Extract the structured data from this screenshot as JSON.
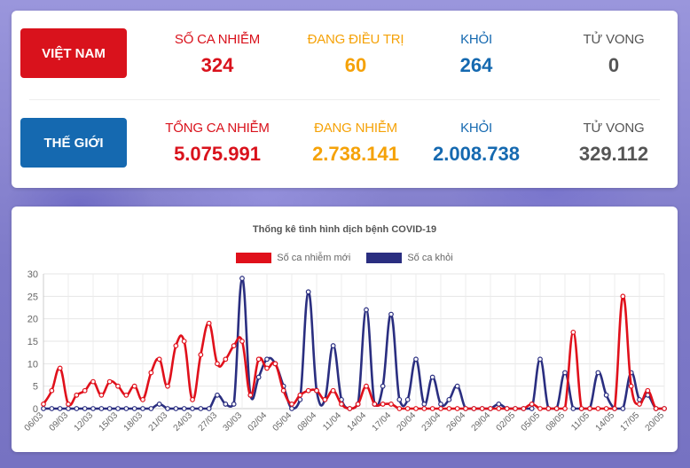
{
  "vietnam": {
    "region_label": "VIỆT NAM",
    "stats": [
      {
        "label": "SỐ CA NHIỄM",
        "value": "324"
      },
      {
        "label": "ĐANG ĐIỀU TRỊ",
        "value": "60"
      },
      {
        "label": "KHỎI",
        "value": "264"
      },
      {
        "label": "TỬ VONG",
        "value": "0"
      }
    ]
  },
  "world": {
    "region_label": "THẾ GIỚI",
    "stats": [
      {
        "label": "TỔNG CA NHIỄM",
        "value": "5.075.991"
      },
      {
        "label": "ĐANG NHIỄM",
        "value": "2.738.141"
      },
      {
        "label": "KHỎI",
        "value": "2.008.738"
      },
      {
        "label": "TỬ VONG",
        "value": "329.112"
      }
    ]
  },
  "colors": {
    "red": "#d9121c",
    "orange": "#f5a208",
    "blue": "#1569b0",
    "gray": "#555555",
    "series_new": "#e0101b",
    "series_recovered": "#2a2e80"
  },
  "chart_data": {
    "type": "line",
    "title": "Thống kê tình hình dịch bệnh COVID-19",
    "legend_position": "top",
    "grid": true,
    "ylim": [
      0,
      30
    ],
    "yticks": [
      0,
      5,
      10,
      15,
      20,
      25,
      30
    ],
    "x": [
      "06/03",
      "07/03",
      "08/03",
      "09/03",
      "10/03",
      "11/03",
      "12/03",
      "13/03",
      "14/03",
      "15/03",
      "16/03",
      "17/03",
      "18/03",
      "19/03",
      "20/03",
      "21/03",
      "22/03",
      "23/03",
      "24/03",
      "25/03",
      "26/03",
      "27/03",
      "28/03",
      "29/03",
      "30/03",
      "31/03",
      "01/04",
      "02/04",
      "03/04",
      "04/04",
      "05/04",
      "06/04",
      "07/04",
      "08/04",
      "09/04",
      "10/04",
      "11/04",
      "12/04",
      "13/04",
      "14/04",
      "15/04",
      "16/04",
      "17/04",
      "18/04",
      "19/04",
      "20/04",
      "21/04",
      "22/04",
      "23/04",
      "24/04",
      "25/04",
      "26/04",
      "27/04",
      "28/04",
      "29/04",
      "30/04",
      "01/05",
      "02/05",
      "03/05",
      "04/05",
      "05/05",
      "06/05",
      "07/05",
      "08/05",
      "09/05",
      "10/05",
      "11/05",
      "12/05",
      "13/05",
      "14/05",
      "15/05",
      "16/05",
      "17/05",
      "18/05",
      "19/05",
      "20/05"
    ],
    "x_tick_labels": [
      "06/03",
      "09/03",
      "12/03",
      "15/03",
      "18/03",
      "21/03",
      "24/03",
      "27/03",
      "30/03",
      "02/04",
      "05/04",
      "08/04",
      "11/04",
      "14/04",
      "17/04",
      "20/04",
      "23/04",
      "26/04",
      "29/04",
      "02/05",
      "05/05",
      "08/05",
      "11/05",
      "14/05",
      "17/05",
      "20/05"
    ],
    "series": [
      {
        "name": "Số ca nhiễm mới",
        "color": "#e0101b",
        "values": [
          1,
          4,
          9,
          1,
          3,
          4,
          6,
          3,
          6,
          5,
          3,
          5,
          2,
          8,
          11,
          5,
          14,
          15,
          2,
          12,
          19,
          10,
          11,
          14,
          15,
          3,
          11,
          9,
          10,
          4,
          1,
          3,
          4,
          4,
          2,
          4,
          1,
          0,
          1,
          5,
          1,
          1,
          1,
          0,
          0,
          0,
          0,
          0,
          0,
          0,
          0,
          0,
          0,
          0,
          0,
          0,
          0,
          0,
          0,
          1,
          0,
          0,
          0,
          0,
          17,
          0,
          0,
          0,
          0,
          0,
          25,
          5,
          1,
          4,
          0,
          0
        ]
      },
      {
        "name": "Số ca khỏi",
        "color": "#2a2e80",
        "values": [
          0,
          0,
          0,
          0,
          0,
          0,
          0,
          0,
          0,
          0,
          0,
          0,
          0,
          0,
          1,
          0,
          0,
          0,
          0,
          0,
          0,
          3,
          1,
          1,
          29,
          3,
          7,
          11,
          10,
          5,
          0,
          2,
          26,
          4,
          2,
          14,
          2,
          0,
          1,
          22,
          1,
          5,
          21,
          2,
          2,
          11,
          1,
          7,
          1,
          2,
          5,
          0,
          0,
          0,
          0,
          1,
          0,
          0,
          0,
          0,
          11,
          0,
          0,
          8,
          0,
          0,
          0,
          8,
          3,
          0,
          0,
          8,
          2,
          3,
          0,
          0
        ]
      }
    ]
  }
}
